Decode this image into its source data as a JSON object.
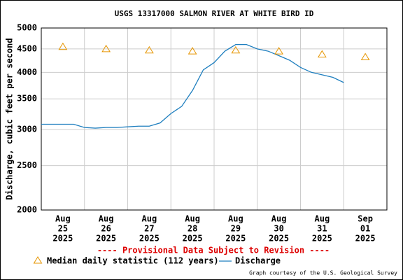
{
  "chart_data": {
    "type": "line",
    "title": "USGS 13317000 SALMON RIVER AT WHITE BIRD ID",
    "y_label": "Discharge, cubic feet per second",
    "notice": "---- Provisional Data Subject to Revision ----",
    "credit": "Graph courtesy of the U.S. Geological Survey",
    "categories": [
      [
        "Aug",
        "25",
        "2025"
      ],
      [
        "Aug",
        "26",
        "2025"
      ],
      [
        "Aug",
        "27",
        "2025"
      ],
      [
        "Aug",
        "28",
        "2025"
      ],
      [
        "Aug",
        "29",
        "2025"
      ],
      [
        "Aug",
        "30",
        "2025"
      ],
      [
        "Aug",
        "31",
        "2025"
      ],
      [
        "Sep",
        "01",
        "2025"
      ]
    ],
    "log_y": true,
    "ylim": [
      2000,
      5000
    ],
    "yticks": [
      2000,
      2500,
      3000,
      3500,
      4000,
      4500,
      5000
    ],
    "grid": true,
    "median": {
      "name": "Median daily statistic (112 years)",
      "color": "#e69500",
      "values": [
        4550,
        4500,
        4470,
        4450,
        4470,
        4450,
        4380,
        4320
      ]
    },
    "discharge": {
      "name": "Discharge",
      "color": "#1f7fbf",
      "samples_per_day": 4,
      "values": [
        3080,
        3080,
        3080,
        3080,
        3030,
        3020,
        3030,
        3030,
        3040,
        3050,
        3050,
        3100,
        3250,
        3370,
        3650,
        4050,
        4200,
        4450,
        4600,
        4600,
        4500,
        4450,
        4350,
        4250,
        4100,
        4000,
        3950,
        3900,
        3800
      ]
    }
  }
}
